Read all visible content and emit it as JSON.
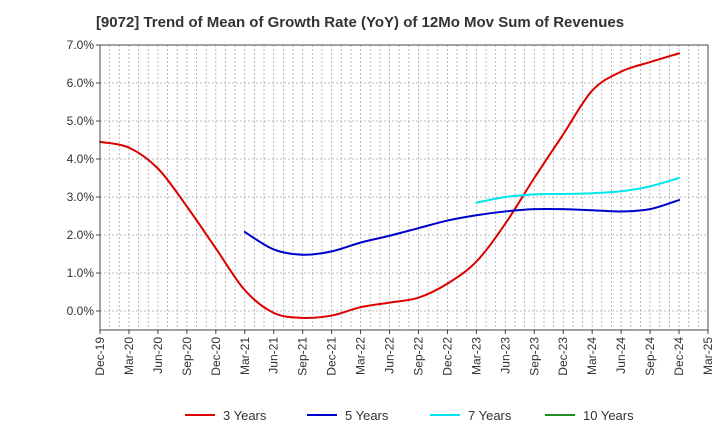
{
  "chart_data": {
    "type": "line",
    "title": "[9072]  Trend of Mean of Growth Rate (YoY) of 12Mo Mov Sum of Revenues",
    "xlabel": "",
    "ylabel": "",
    "ylim": [
      -0.5,
      7.0
    ],
    "yticks": [
      0.0,
      1.0,
      2.0,
      3.0,
      4.0,
      5.0,
      6.0,
      7.0
    ],
    "ytick_labels": [
      "0.0%",
      "1.0%",
      "2.0%",
      "3.0%",
      "4.0%",
      "5.0%",
      "6.0%",
      "7.0%"
    ],
    "categories": [
      "Dec-19",
      "Mar-20",
      "Jun-20",
      "Sep-20",
      "Dec-20",
      "Mar-21",
      "Jun-21",
      "Sep-21",
      "Dec-21",
      "Mar-22",
      "Jun-22",
      "Sep-22",
      "Dec-22",
      "Mar-23",
      "Jun-23",
      "Sep-23",
      "Dec-23",
      "Mar-24",
      "Jun-24",
      "Sep-24",
      "Dec-24",
      "Mar-25"
    ],
    "grid": true,
    "legend_position": "bottom",
    "series": [
      {
        "name": "3 Years",
        "color": "#dd0000",
        "values": [
          4.45,
          4.3,
          3.75,
          2.75,
          1.65,
          0.55,
          -0.05,
          -0.18,
          -0.12,
          0.1,
          0.22,
          0.35,
          0.72,
          1.3,
          2.3,
          3.5,
          4.65,
          5.8,
          6.3,
          6.55,
          6.78,
          null
        ]
      },
      {
        "name": "5 Years",
        "color": "#0000cc",
        "values": [
          null,
          null,
          null,
          null,
          null,
          2.08,
          1.62,
          1.48,
          1.57,
          1.8,
          1.98,
          2.18,
          2.38,
          2.52,
          2.62,
          2.68,
          2.68,
          2.65,
          2.62,
          2.68,
          2.92,
          null
        ]
      },
      {
        "name": "7 Years",
        "color": "#00e5ee",
        "values": [
          null,
          null,
          null,
          null,
          null,
          null,
          null,
          null,
          null,
          null,
          null,
          null,
          null,
          2.85,
          3.0,
          3.07,
          3.08,
          3.1,
          3.15,
          3.28,
          3.5,
          null
        ]
      },
      {
        "name": "10 Years",
        "color": "#228b22",
        "values": [
          null,
          null,
          null,
          null,
          null,
          null,
          null,
          null,
          null,
          null,
          null,
          null,
          null,
          null,
          null,
          null,
          null,
          null,
          null,
          null,
          null,
          null
        ]
      }
    ]
  }
}
